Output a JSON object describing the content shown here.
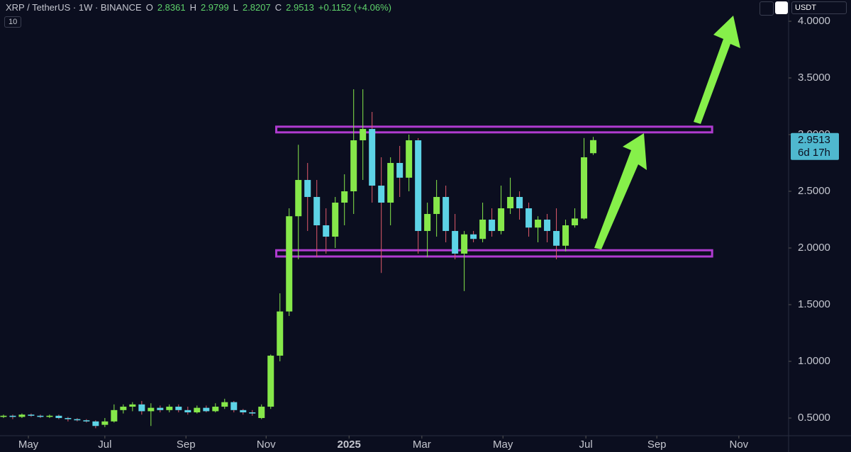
{
  "header": {
    "symbol": "XRP / TetherUS · 1W · BINANCE",
    "stats": [
      {
        "key": "O",
        "value": "2.8361"
      },
      {
        "key": "H",
        "value": "2.9799"
      },
      {
        "key": "L",
        "value": "2.8207"
      },
      {
        "key": "C",
        "value": "2.9513"
      }
    ],
    "change": "+0.1152 (+4.06%)",
    "indicator": "10",
    "currency": "USDT"
  },
  "chart_data": {
    "type": "candlestick",
    "up_color": "#86e84a",
    "down_color": "#5dd3e6",
    "down_wick_color": "#e05a6b",
    "open": [
      0.51,
      0.52,
      0.51,
      0.53,
      0.52,
      0.51,
      0.52,
      0.5,
      0.49,
      0.48,
      0.47,
      0.44,
      0.47,
      0.57,
      0.6,
      0.62,
      0.56,
      0.59,
      0.57,
      0.6,
      0.57,
      0.55,
      0.59,
      0.56,
      0.6,
      0.64,
      0.57,
      0.55,
      0.5,
      0.6,
      1.05,
      1.44,
      2.28,
      2.6,
      2.45,
      2.2,
      2.1,
      2.4,
      2.5,
      2.95,
      3.05,
      2.55,
      2.4,
      2.75,
      2.62,
      2.95,
      2.15,
      2.3,
      2.45,
      2.15,
      1.95,
      2.12,
      2.08,
      2.25,
      2.15,
      2.35,
      2.45,
      2.35,
      2.18,
      2.25,
      2.15,
      2.02,
      2.2,
      2.26,
      2.8361
    ],
    "high": [
      0.53,
      0.53,
      0.54,
      0.54,
      0.53,
      0.53,
      0.53,
      0.51,
      0.5,
      0.49,
      0.48,
      0.5,
      0.62,
      0.62,
      0.64,
      0.65,
      0.63,
      0.61,
      0.62,
      0.62,
      0.6,
      0.61,
      0.61,
      0.63,
      0.67,
      0.65,
      0.58,
      0.57,
      0.62,
      1.06,
      1.6,
      2.35,
      2.91,
      2.75,
      2.6,
      2.35,
      2.45,
      2.65,
      3.4,
      3.4,
      3.2,
      2.8,
      2.8,
      2.9,
      3.0,
      2.97,
      2.4,
      2.6,
      2.55,
      2.3,
      2.15,
      2.15,
      2.4,
      2.35,
      2.55,
      2.62,
      2.5,
      2.4,
      2.28,
      2.3,
      2.35,
      2.25,
      2.35,
      2.97,
      2.9799
    ],
    "low": [
      0.5,
      0.49,
      0.5,
      0.51,
      0.5,
      0.5,
      0.49,
      0.47,
      0.47,
      0.46,
      0.41,
      0.42,
      0.46,
      0.54,
      0.56,
      0.53,
      0.43,
      0.55,
      0.55,
      0.55,
      0.53,
      0.54,
      0.55,
      0.55,
      0.58,
      0.55,
      0.53,
      0.52,
      0.49,
      0.58,
      1.0,
      1.4,
      1.9,
      2.15,
      1.92,
      1.95,
      2.0,
      2.2,
      2.3,
      2.6,
      2.4,
      1.78,
      2.2,
      2.45,
      2.5,
      1.95,
      1.92,
      2.1,
      2.05,
      1.9,
      1.62,
      2.05,
      2.05,
      2.1,
      2.12,
      2.3,
      2.25,
      2.1,
      2.05,
      2.05,
      1.9,
      1.97,
      2.18,
      2.25,
      2.8207
    ],
    "close": [
      0.52,
      0.51,
      0.53,
      0.52,
      0.51,
      0.52,
      0.5,
      0.49,
      0.48,
      0.47,
      0.43,
      0.47,
      0.57,
      0.6,
      0.62,
      0.56,
      0.59,
      0.57,
      0.6,
      0.57,
      0.55,
      0.59,
      0.56,
      0.6,
      0.64,
      0.57,
      0.55,
      0.54,
      0.6,
      1.05,
      1.44,
      2.28,
      2.6,
      2.45,
      2.2,
      2.1,
      2.4,
      2.5,
      2.95,
      3.05,
      2.55,
      2.4,
      2.75,
      2.62,
      2.95,
      2.15,
      2.3,
      2.45,
      2.15,
      1.95,
      2.12,
      2.08,
      2.25,
      2.15,
      2.35,
      2.45,
      2.35,
      2.18,
      2.25,
      2.15,
      2.02,
      2.2,
      2.26,
      2.8,
      2.9513
    ],
    "xlim": [
      -0.38,
      85.2
    ],
    "xticks": [
      {
        "value": 2.7,
        "label": "May"
      },
      {
        "value": 11,
        "label": "Jul"
      },
      {
        "value": 19.8,
        "label": "Sep"
      },
      {
        "value": 28.5,
        "label": "Nov"
      },
      {
        "value": 37.5,
        "label": "2025"
      },
      {
        "value": 45.4,
        "label": "Mar"
      },
      {
        "value": 54.2,
        "label": "May"
      },
      {
        "value": 63.2,
        "label": "Jul"
      },
      {
        "value": 70.9,
        "label": "Sep"
      },
      {
        "value": 79.8,
        "label": "Nov"
      }
    ],
    "ylim": [
      0.344,
      4.1875
    ],
    "yticks": [
      {
        "value": 0.5,
        "label": "0.5000"
      },
      {
        "value": 1,
        "label": "1.0000"
      },
      {
        "value": 1.5,
        "label": "1.5000"
      },
      {
        "value": 2,
        "label": "2.0000"
      },
      {
        "value": 2.5,
        "label": "2.5000"
      },
      {
        "value": 3,
        "label": "3.0000"
      },
      {
        "value": 3.5,
        "label": "3.5000"
      },
      {
        "value": 4,
        "label": "4.0000"
      }
    ],
    "zones": [
      {
        "x0": 29.6,
        "x1": 76.9,
        "top": 3.07,
        "bottom": 3.02
      },
      {
        "x0": 29.6,
        "x1": 76.9,
        "top": 1.98,
        "bottom": 1.925
      }
    ],
    "zone_color": "#b03bd0",
    "last_price": {
      "value": 2.9513,
      "label": "2.9513",
      "countdown": "6d 17h"
    }
  }
}
